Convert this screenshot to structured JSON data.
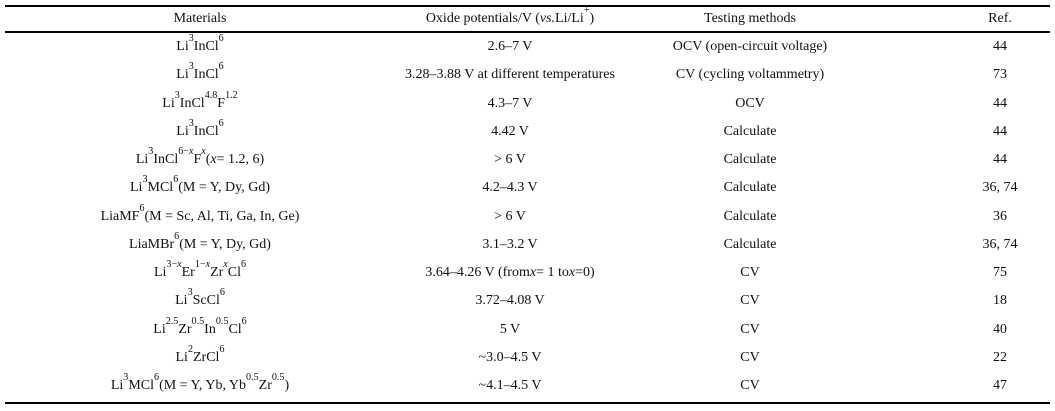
{
  "headers": {
    "materials": "Materials",
    "oxide": [
      [
        "Oxide potentials/V (",
        ""
      ],
      [
        "vs.",
        "i"
      ],
      [
        " Li/Li",
        ""
      ],
      [
        "+",
        "sup"
      ],
      [
        ")",
        ""
      ]
    ],
    "testing": "Testing methods",
    "ref": "Ref."
  },
  "rows": [
    {
      "material": [
        [
          "Li",
          ""
        ],
        [
          "3",
          "sub"
        ],
        [
          "InCl",
          ""
        ],
        [
          "6",
          "sub"
        ]
      ],
      "oxide": [
        [
          "2.6–7 V",
          ""
        ]
      ],
      "method": "OCV (open-circuit voltage)",
      "ref": "44"
    },
    {
      "material": [
        [
          "Li",
          ""
        ],
        [
          "3",
          "sub"
        ],
        [
          "InCl",
          ""
        ],
        [
          "6",
          "sub"
        ]
      ],
      "oxide": [
        [
          "3.28–3.88 V at different temperatures",
          ""
        ]
      ],
      "method": "CV (cycling voltammetry)",
      "ref": "73"
    },
    {
      "material": [
        [
          "Li",
          ""
        ],
        [
          "3",
          "sub"
        ],
        [
          "InCl",
          ""
        ],
        [
          "4.8",
          "sub"
        ],
        [
          "F",
          ""
        ],
        [
          "1.2",
          "sub"
        ]
      ],
      "oxide": [
        [
          "4.3–7 V",
          ""
        ]
      ],
      "method": "OCV",
      "ref": "44"
    },
    {
      "material": [
        [
          "Li",
          ""
        ],
        [
          "3",
          "sub"
        ],
        [
          "InCl",
          ""
        ],
        [
          "6",
          "sub"
        ]
      ],
      "oxide": [
        [
          "4.42 V",
          ""
        ]
      ],
      "method": "Calculate",
      "ref": "44"
    },
    {
      "material": [
        [
          "Li",
          ""
        ],
        [
          "3",
          "sub"
        ],
        [
          "InCl",
          ""
        ],
        [
          "6−",
          "sub"
        ],
        [
          "x",
          "subi"
        ],
        [
          "F",
          ""
        ],
        [
          "x",
          "subi"
        ],
        [
          " (",
          ""
        ],
        [
          "x",
          "i"
        ],
        [
          " = 1.2, 6)",
          ""
        ]
      ],
      "oxide": [
        [
          "> 6 V",
          ""
        ]
      ],
      "method": "Calculate",
      "ref": "44"
    },
    {
      "material": [
        [
          "Li",
          ""
        ],
        [
          "3",
          "sub"
        ],
        [
          "MCl",
          ""
        ],
        [
          "6",
          "sub"
        ],
        [
          " (M = Y, Dy, Gd)",
          ""
        ]
      ],
      "oxide": [
        [
          "4.2–4.3 V",
          ""
        ]
      ],
      "method": "Calculate",
      "ref": "36, 74"
    },
    {
      "material": [
        [
          "LiaMF",
          ""
        ],
        [
          "6",
          "sub"
        ],
        [
          " (M = Sc, Al, Ti, Ga, In, Ge)",
          ""
        ]
      ],
      "oxide": [
        [
          "> 6 V",
          ""
        ]
      ],
      "method": "Calculate",
      "ref": "36"
    },
    {
      "material": [
        [
          "LiaMBr",
          ""
        ],
        [
          "6",
          "sub"
        ],
        [
          " (M = Y, Dy, Gd)",
          ""
        ]
      ],
      "oxide": [
        [
          "3.1–3.2 V",
          ""
        ]
      ],
      "method": "Calculate",
      "ref": "36, 74"
    },
    {
      "material": [
        [
          "Li",
          ""
        ],
        [
          "3−",
          "sub"
        ],
        [
          "x",
          "subi"
        ],
        [
          "Er",
          ""
        ],
        [
          "1−",
          "sub"
        ],
        [
          "x",
          "subi"
        ],
        [
          "Zr",
          ""
        ],
        [
          "x",
          "subi"
        ],
        [
          "Cl",
          ""
        ],
        [
          "6",
          "sub"
        ]
      ],
      "oxide": [
        [
          "3.64–4.26 V (from ",
          ""
        ],
        [
          "x",
          "i"
        ],
        [
          " = 1 to  ",
          ""
        ],
        [
          "x",
          "i"
        ],
        [
          " =0)",
          ""
        ]
      ],
      "method": "CV",
      "ref": "75"
    },
    {
      "material": [
        [
          "Li",
          ""
        ],
        [
          "3",
          "sub"
        ],
        [
          "ScCl",
          ""
        ],
        [
          "6",
          "sub"
        ]
      ],
      "oxide": [
        [
          "3.72–4.08 V",
          ""
        ]
      ],
      "method": "CV",
      "ref": "18"
    },
    {
      "material": [
        [
          "Li",
          ""
        ],
        [
          "2.5",
          "sub"
        ],
        [
          "Zr",
          ""
        ],
        [
          "0.5",
          "sub"
        ],
        [
          "In",
          ""
        ],
        [
          "0.5",
          "sub"
        ],
        [
          "Cl",
          ""
        ],
        [
          "6",
          "sub"
        ]
      ],
      "oxide": [
        [
          "5 V",
          ""
        ]
      ],
      "method": "CV",
      "ref": "40"
    },
    {
      "material": [
        [
          "Li",
          ""
        ],
        [
          "2",
          "sub"
        ],
        [
          "ZrCl",
          ""
        ],
        [
          "6",
          "sub"
        ]
      ],
      "oxide": [
        [
          "~3.0–4.5 V",
          ""
        ]
      ],
      "method": "CV",
      "ref": "22"
    },
    {
      "material": [
        [
          "Li",
          ""
        ],
        [
          "3",
          "sub"
        ],
        [
          "MCl",
          ""
        ],
        [
          "6",
          "sub"
        ],
        [
          " (M = Y, Yb, Yb",
          ""
        ],
        [
          "0.5",
          "sub"
        ],
        [
          "Zr",
          ""
        ],
        [
          "0.5",
          "sub"
        ],
        [
          ")",
          ""
        ]
      ],
      "oxide": [
        [
          "~4.1–4.5 V",
          ""
        ]
      ],
      "method": "CV",
      "ref": "47"
    }
  ]
}
